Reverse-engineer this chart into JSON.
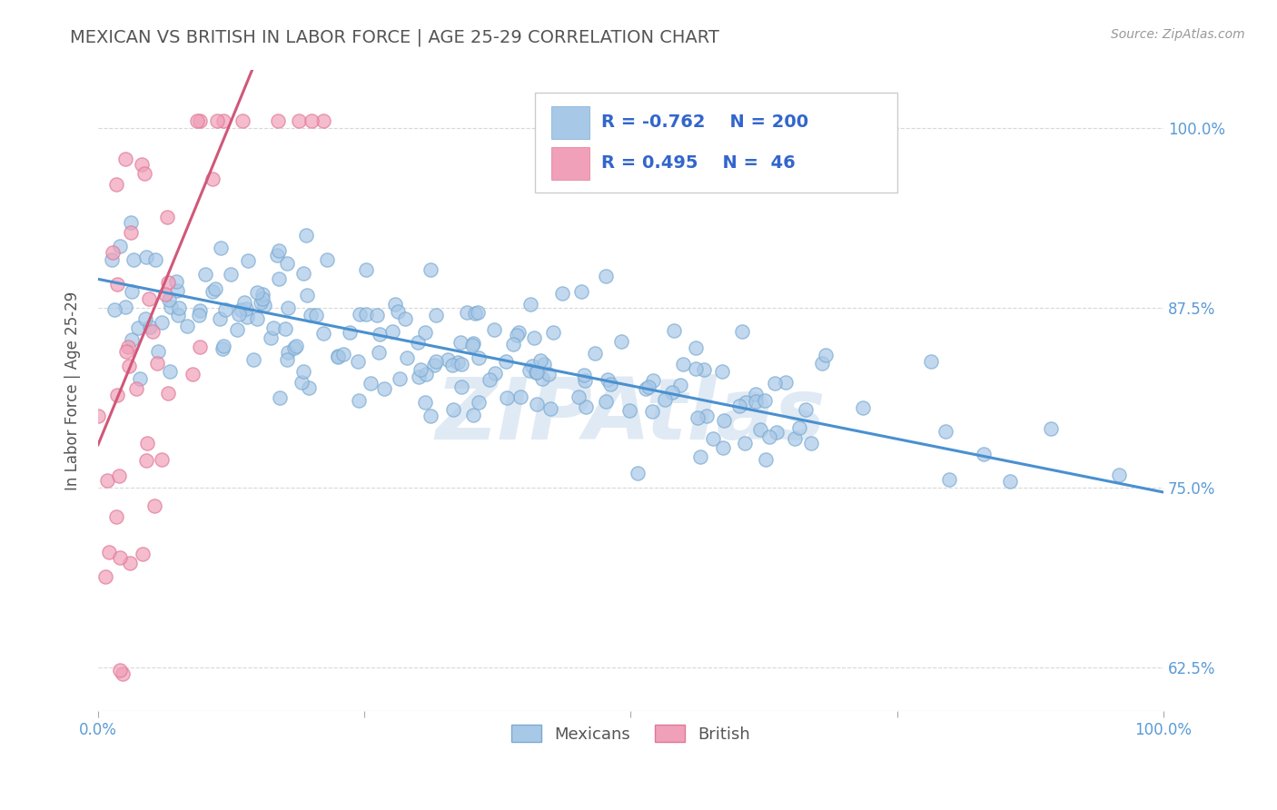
{
  "title": "MEXICAN VS BRITISH IN LABOR FORCE | AGE 25-29 CORRELATION CHART",
  "source_text": "Source: ZipAtlas.com",
  "ylabel": "In Labor Force | Age 25-29",
  "xlim": [
    0.0,
    1.0
  ],
  "ylim": [
    0.595,
    1.04
  ],
  "yticks": [
    0.625,
    0.75,
    0.875,
    1.0
  ],
  "ytick_labels": [
    "62.5%",
    "75.0%",
    "87.5%",
    "100.0%"
  ],
  "xticks": [
    0.0,
    0.25,
    0.5,
    0.75,
    1.0
  ],
  "xtick_labels": [
    "0.0%",
    "",
    "",
    "",
    "100.0%"
  ],
  "mexican_R": -0.762,
  "mexican_N": 200,
  "british_R": 0.495,
  "british_N": 46,
  "mexican_color": "#a8c8e8",
  "british_color": "#f0a0b8",
  "mexican_edge_color": "#7aaad0",
  "british_edge_color": "#e07898",
  "mexican_line_color": "#4a90d0",
  "british_line_color": "#d05878",
  "watermark": "ZIPAtlas",
  "watermark_color": "#ccdded",
  "title_color": "#555555",
  "title_fontsize": 14,
  "label_color": "#5b9bd5",
  "background_color": "#ffffff",
  "grid_color": "#d8d8d8",
  "legend_R_color": "#3366cc"
}
